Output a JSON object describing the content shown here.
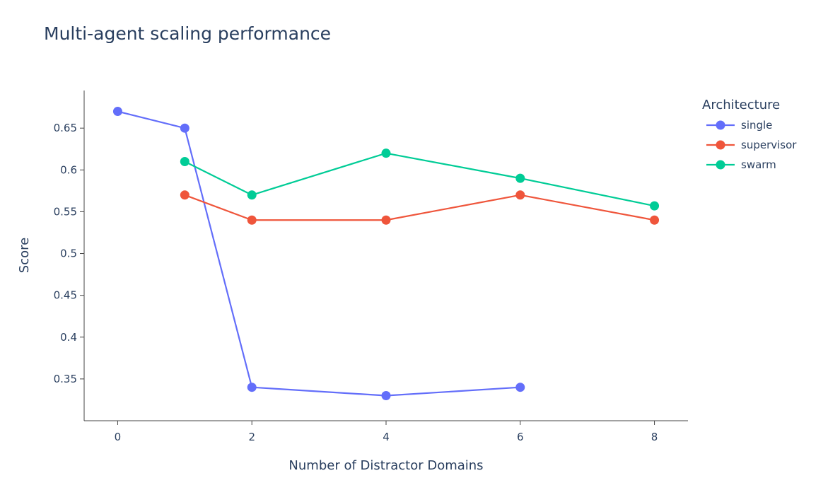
{
  "chart_data": {
    "type": "line",
    "title": "Multi-agent scaling performance",
    "xlabel": "Number of Distractor Domains",
    "ylabel": "Score",
    "xlim": [
      -0.5,
      8.5
    ],
    "ylim": [
      0.3,
      0.695
    ],
    "xticks": [
      "0",
      "2",
      "4",
      "6",
      "8"
    ],
    "yticks": [
      "0.35",
      "0.4",
      "0.45",
      "0.5",
      "0.55",
      "0.6",
      "0.65"
    ],
    "grid": false,
    "legend_title": "Architecture",
    "legend_position": "top-right",
    "series": [
      {
        "name": "single",
        "color": "#636efa",
        "x": [
          0,
          1,
          2,
          4,
          6
        ],
        "y": [
          0.67,
          0.65,
          0.34,
          0.33,
          0.34
        ]
      },
      {
        "name": "supervisor",
        "color": "#ef553b",
        "x": [
          1,
          2,
          4,
          6,
          8
        ],
        "y": [
          0.57,
          0.54,
          0.54,
          0.57,
          0.54
        ]
      },
      {
        "name": "swarm",
        "color": "#00cc96",
        "x": [
          1,
          2,
          4,
          6,
          8
        ],
        "y": [
          0.61,
          0.57,
          0.62,
          0.59,
          0.557
        ]
      }
    ]
  }
}
